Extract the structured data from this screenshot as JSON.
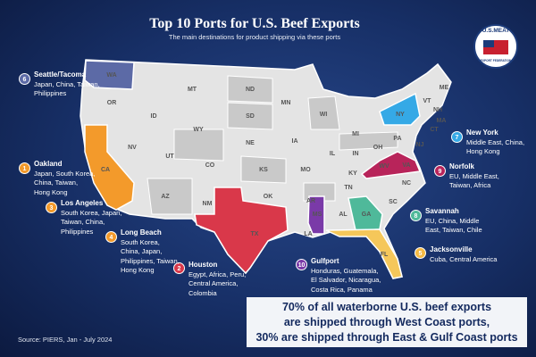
{
  "title": "Top 10 Ports for U.S. Beef Exports",
  "subtitle": "The main destinations for product shipping via these ports",
  "logo": {
    "name": "U.S.MEAT",
    "tagline": "EXPORT FEDERATION"
  },
  "states": [
    "WA",
    "MT",
    "ND",
    "MN",
    "OR",
    "ID",
    "SD",
    "WY",
    "WI",
    "MI",
    "NY",
    "VT",
    "NH",
    "ME",
    "MA",
    "CT",
    "NE",
    "IA",
    "PA",
    "NJ",
    "NV",
    "UT",
    "CO",
    "KS",
    "MO",
    "IL",
    "IN",
    "OH",
    "WV",
    "VA",
    "KY",
    "CA",
    "AZ",
    "NM",
    "OK",
    "AR",
    "TN",
    "NC",
    "SC",
    "TX",
    "MS",
    "AL",
    "GA",
    "LA",
    "FL"
  ],
  "ports": [
    {
      "number": 1,
      "name": "Oakland",
      "destinations": [
        "Japan, South Korea,",
        "China, Taiwan,",
        "Hong Kong"
      ],
      "color": "#f39a2b"
    },
    {
      "number": 2,
      "name": "Houston",
      "destinations": [
        "Egypt, Africa, Peru,",
        "Central America,",
        "Colombia"
      ],
      "color": "#d9384a"
    },
    {
      "number": 3,
      "name": "Los Angeles",
      "destinations": [
        "South Korea, Japan,",
        "Taiwan, China,",
        "Philippines"
      ],
      "color": "#f39a2b"
    },
    {
      "number": 4,
      "name": "Long Beach",
      "destinations": [
        "South Korea,",
        "China, Japan,",
        "Philippines, Taiwan,",
        "Hong Kong"
      ],
      "color": "#f39a2b"
    },
    {
      "number": 5,
      "name": "Jacksonville",
      "destinations": [
        "Cuba, Central America"
      ],
      "color": "#f5b942"
    },
    {
      "number": 6,
      "name": "Seattle/Tacoma",
      "destinations": [
        "Japan, China, Taiwan,",
        "Philippines"
      ],
      "color": "#5c6aa6"
    },
    {
      "number": 7,
      "name": "New York",
      "destinations": [
        "Middle East, China,",
        "Hong Kong"
      ],
      "color": "#35a9e6"
    },
    {
      "number": 8,
      "name": "Savannah",
      "destinations": [
        "EU, China, Middle",
        "East, Taiwan, Chile"
      ],
      "color": "#4fb99a"
    },
    {
      "number": 9,
      "name": "Norfolk",
      "destinations": [
        "EU, Middle East,",
        "Taiwan, Africa"
      ],
      "color": "#b8245a"
    },
    {
      "number": 10,
      "name": "Gulfport",
      "destinations": [
        "Honduras, Guatemala,",
        "El Salvador, Nicaragua,",
        "Costa Rica, Panama"
      ],
      "color": "#7a3aa8"
    }
  ],
  "callout": [
    "70% of all waterborne U.S. beef exports",
    "are shipped through West Coast ports,",
    "30% are shipped through East & Gulf Coast ports"
  ],
  "source": "Source: PIERS, Jan - July 2024"
}
